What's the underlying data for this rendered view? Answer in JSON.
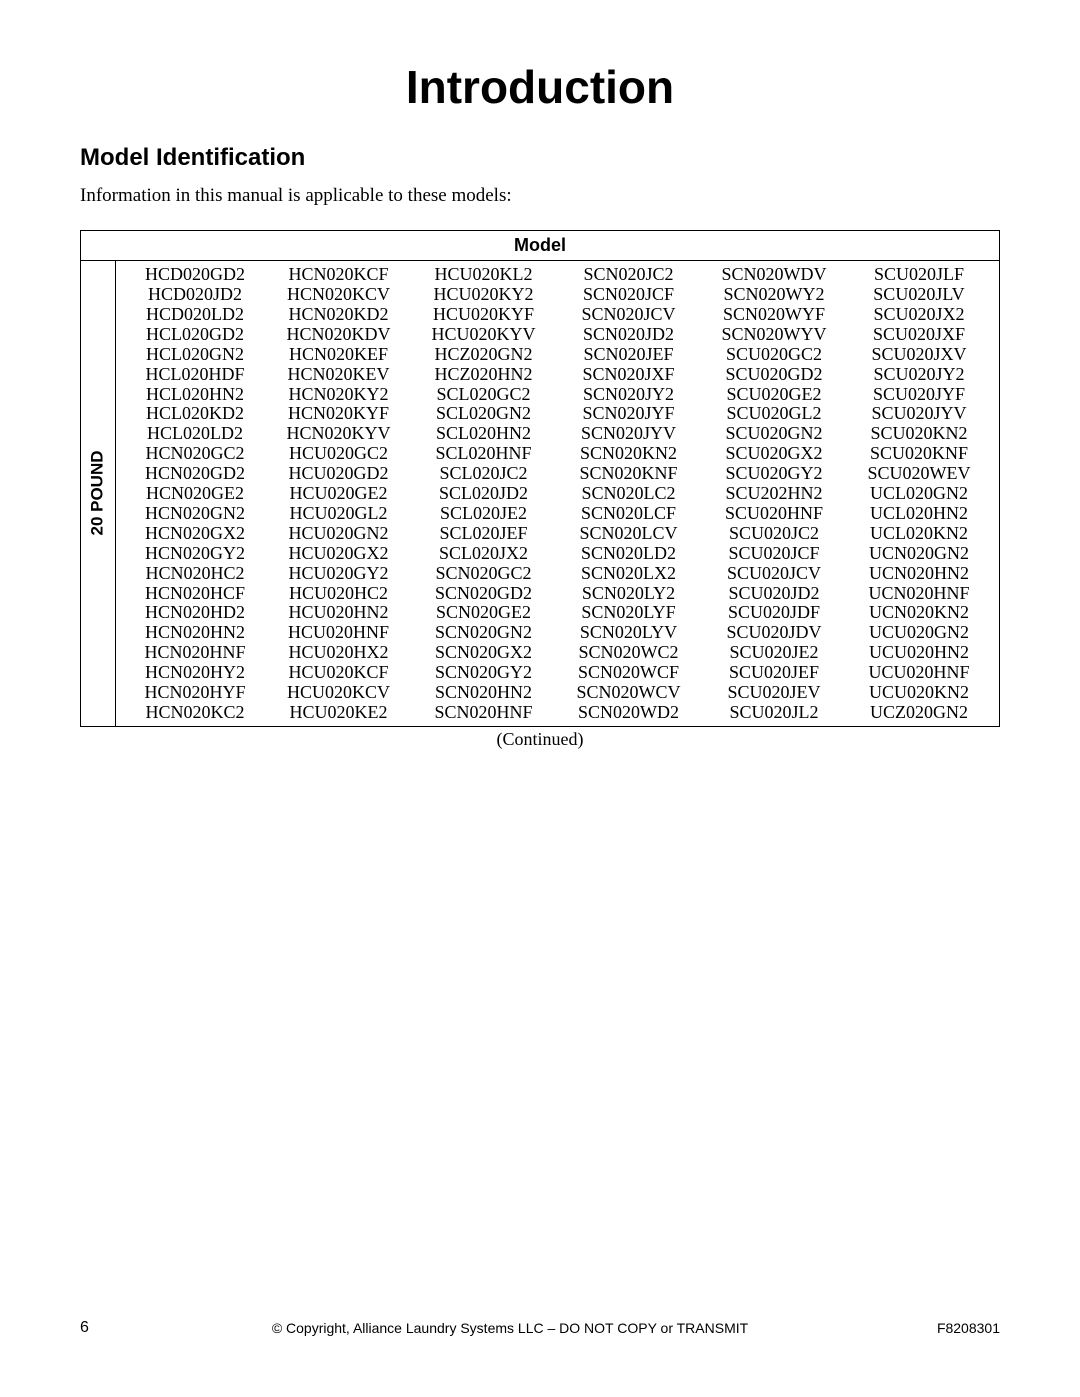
{
  "title": "Introduction",
  "section": "Model Identification",
  "intro": "Information in this manual is applicable to these models:",
  "table_header": "Model",
  "row_label": "20 POUND",
  "continued": "(Continued)",
  "columns": [
    [
      "HCD020GD2",
      "HCD020JD2",
      "HCD020LD2",
      "HCL020GD2",
      "HCL020GN2",
      "HCL020HDF",
      "HCL020HN2",
      "HCL020KD2",
      "HCL020LD2",
      "HCN020GC2",
      "HCN020GD2",
      "HCN020GE2",
      "HCN020GN2",
      "HCN020GX2",
      "HCN020GY2",
      "HCN020HC2",
      "HCN020HCF",
      "HCN020HD2",
      "HCN020HN2",
      "HCN020HNF",
      "HCN020HY2",
      "HCN020HYF",
      "HCN020KC2"
    ],
    [
      "HCN020KCF",
      "HCN020KCV",
      "HCN020KD2",
      "HCN020KDV",
      "HCN020KEF",
      "HCN020KEV",
      "HCN020KY2",
      "HCN020KYF",
      "HCN020KYV",
      "HCU020GC2",
      "HCU020GD2",
      "HCU020GE2",
      "HCU020GL2",
      "HCU020GN2",
      "HCU020GX2",
      "HCU020GY2",
      "HCU020HC2",
      "HCU020HN2",
      "HCU020HNF",
      "HCU020HX2",
      "HCU020KCF",
      "HCU020KCV",
      "HCU020KE2"
    ],
    [
      "HCU020KL2",
      "HCU020KY2",
      "HCU020KYF",
      "HCU020KYV",
      "HCZ020GN2",
      "HCZ020HN2",
      "SCL020GC2",
      "SCL020GN2",
      "SCL020HN2",
      "SCL020HNF",
      "SCL020JC2",
      "SCL020JD2",
      "SCL020JE2",
      "SCL020JEF",
      "SCL020JX2",
      "SCN020GC2",
      "SCN020GD2",
      "SCN020GE2",
      "SCN020GN2",
      "SCN020GX2",
      "SCN020GY2",
      "SCN020HN2",
      "SCN020HNF"
    ],
    [
      "SCN020JC2",
      "SCN020JCF",
      "SCN020JCV",
      "SCN020JD2",
      "SCN020JEF",
      "SCN020JXF",
      "SCN020JY2",
      "SCN020JYF",
      "SCN020JYV",
      "SCN020KN2",
      "SCN020KNF",
      "SCN020LC2",
      "SCN020LCF",
      "SCN020LCV",
      "SCN020LD2",
      "SCN020LX2",
      "SCN020LY2",
      "SCN020LYF",
      "SCN020LYV",
      "SCN020WC2",
      "SCN020WCF",
      "SCN020WCV",
      "SCN020WD2"
    ],
    [
      "SCN020WDV",
      "SCN020WY2",
      "SCN020WYF",
      "SCN020WYV",
      "SCU020GC2",
      "SCU020GD2",
      "SCU020GE2",
      "SCU020GL2",
      "SCU020GN2",
      "SCU020GX2",
      "SCU020GY2",
      "SCU202HN2",
      "SCU020HNF",
      "SCU020JC2",
      "SCU020JCF",
      "SCU020JCV",
      "SCU020JD2",
      "SCU020JDF",
      "SCU020JDV",
      "SCU020JE2",
      "SCU020JEF",
      "SCU020JEV",
      "SCU020JL2"
    ],
    [
      "SCU020JLF",
      "SCU020JLV",
      "SCU020JX2",
      "SCU020JXF",
      "SCU020JXV",
      "SCU020JY2",
      "SCU020JYF",
      "SCU020JYV",
      "SCU020KN2",
      "SCU020KNF",
      "SCU020WEV",
      "UCL020GN2",
      "UCL020HN2",
      "UCL020KN2",
      "UCN020GN2",
      "UCN020HN2",
      "UCN020HNF",
      "UCN020KN2",
      "UCU020GN2",
      "UCU020HN2",
      "UCU020HNF",
      "UCU020KN2",
      "UCZ020GN2"
    ]
  ],
  "footer": {
    "page": "6",
    "copyright": "© Copyright, Alliance Laundry Systems LLC – DO NOT COPY or TRANSMIT",
    "docnum": "F8208301"
  }
}
